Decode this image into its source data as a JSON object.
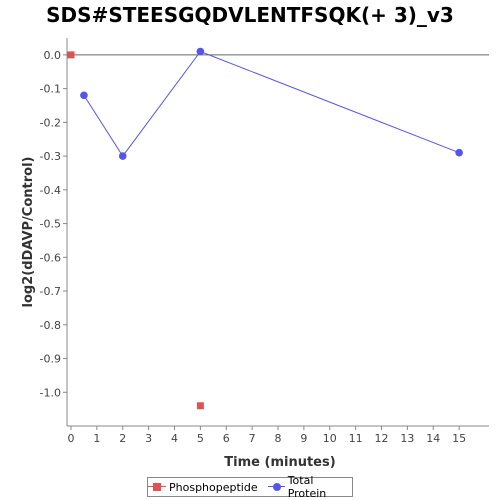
{
  "chart_data": {
    "type": "line",
    "title": "SDS#STEESGQDVLENTFSQK(+ 3)_v3",
    "xlabel": "Time (minutes)",
    "ylabel": "log2(dDAVP/Control)",
    "xlim": [
      0,
      16
    ],
    "ylim": [
      -1.1,
      0.05
    ],
    "x_ticks": [
      0,
      1,
      2,
      3,
      4,
      5,
      6,
      7,
      8,
      9,
      10,
      11,
      12,
      13,
      14,
      15
    ],
    "y_ticks": [
      0.0,
      -0.1,
      -0.2,
      -0.3,
      -0.4,
      -0.5,
      -0.6,
      -0.7,
      -0.8,
      -0.9,
      -1.0
    ],
    "y_tick_labels": [
      "0.0",
      "-0.1",
      "-0.2",
      "-0.3",
      "-0.4",
      "-0.5",
      "-0.6",
      "-0.7",
      "-0.8",
      "-0.9",
      "-1.0"
    ],
    "reference_line_y": 0,
    "legend_position": "bottom",
    "grid": false,
    "series": [
      {
        "name": "Phosphopeptide",
        "color": "#e05252",
        "marker": "square",
        "connected": false,
        "points": [
          {
            "x": 0,
            "y": 0.0
          },
          {
            "x": 5,
            "y": -1.04
          }
        ]
      },
      {
        "name": "Total Protein",
        "color": "#5555ee",
        "marker": "circle",
        "connected": true,
        "points": [
          {
            "x": 0.5,
            "y": -0.12
          },
          {
            "x": 2,
            "y": -0.3
          },
          {
            "x": 5,
            "y": 0.01
          },
          {
            "x": 15,
            "y": -0.29
          }
        ]
      }
    ]
  }
}
